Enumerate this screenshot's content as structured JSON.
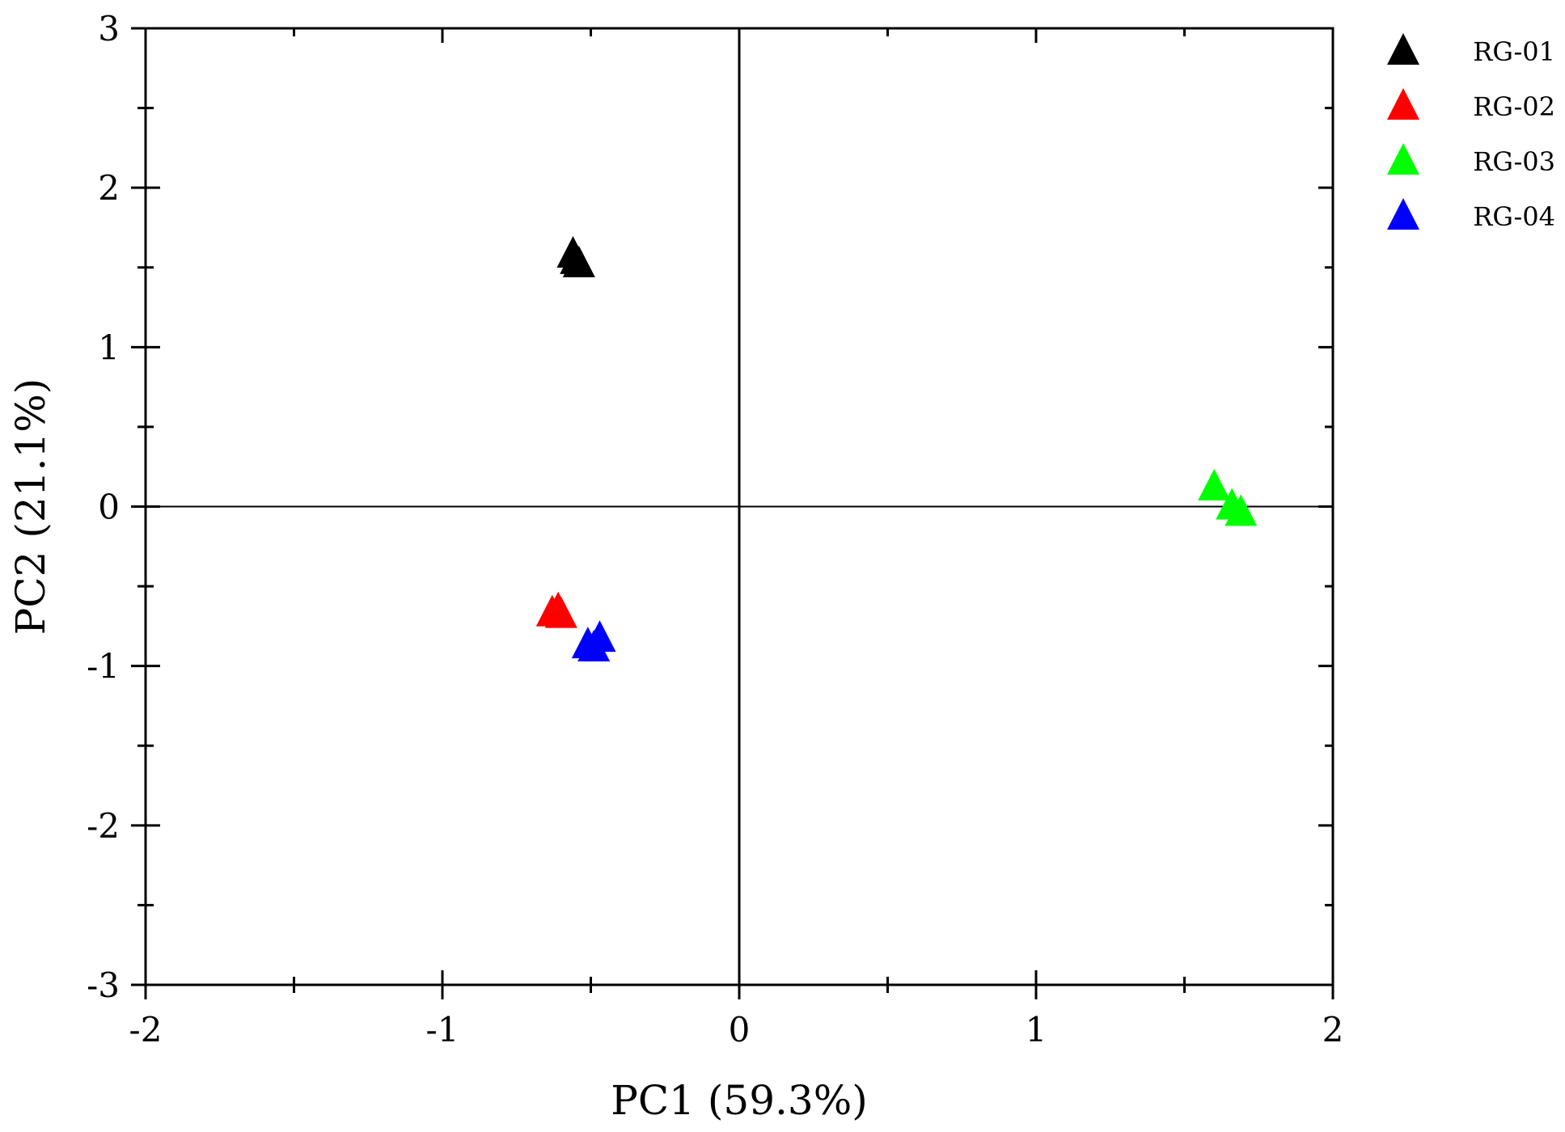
{
  "chart_data": {
    "type": "scatter",
    "xlabel": "PC1 (59.3%)",
    "ylabel": "PC2 (21.1%)",
    "xlim": [
      -2,
      2
    ],
    "ylim": [
      -3,
      3
    ],
    "xticks": [
      -2,
      -1,
      0,
      1,
      2
    ],
    "yticks": [
      -3,
      -2,
      -1,
      0,
      1,
      2,
      3
    ],
    "x_tick_labels": [
      "-2",
      "-1",
      "0",
      "1",
      "2"
    ],
    "y_tick_labels": [
      "-3",
      "-2",
      "-1",
      "0",
      "1",
      "2",
      "3"
    ],
    "reference_lines": {
      "x": 0,
      "y": 0
    },
    "marker": "triangle",
    "legend_position": "right-top",
    "series": [
      {
        "name": "RG-01",
        "color": "#000000",
        "points": [
          [
            -0.56,
            1.59
          ],
          [
            -0.55,
            1.55
          ],
          [
            -0.54,
            1.53
          ]
        ]
      },
      {
        "name": "RG-02",
        "color": "#ff0000",
        "points": [
          [
            -0.63,
            -0.66
          ],
          [
            -0.61,
            -0.64
          ],
          [
            -0.6,
            -0.67
          ]
        ]
      },
      {
        "name": "RG-03",
        "color": "#00ff00",
        "points": [
          [
            1.6,
            0.13
          ],
          [
            1.66,
            0.01
          ],
          [
            1.69,
            -0.03
          ]
        ]
      },
      {
        "name": "RG-04",
        "color": "#0000ff",
        "points": [
          [
            -0.51,
            -0.86
          ],
          [
            -0.47,
            -0.82
          ],
          [
            -0.49,
            -0.88
          ]
        ]
      }
    ]
  }
}
